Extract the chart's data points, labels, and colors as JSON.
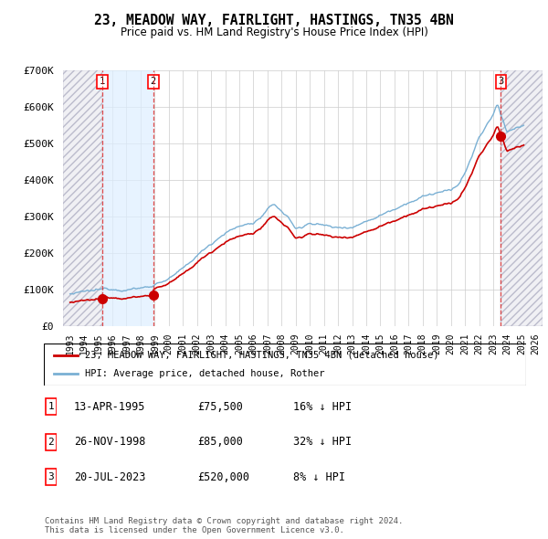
{
  "title": "23, MEADOW WAY, FAIRLIGHT, HASTINGS, TN35 4BN",
  "subtitle": "Price paid vs. HM Land Registry's House Price Index (HPI)",
  "ylim": [
    0,
    700000
  ],
  "yticks": [
    0,
    100000,
    200000,
    300000,
    400000,
    500000,
    600000,
    700000
  ],
  "ytick_labels": [
    "£0",
    "£100K",
    "£200K",
    "£300K",
    "£400K",
    "£500K",
    "£600K",
    "£700K"
  ],
  "sales": [
    {
      "date": 1995.29,
      "price": 75500,
      "label": "1"
    },
    {
      "date": 1998.9,
      "price": 85000,
      "label": "2"
    },
    {
      "date": 2023.55,
      "price": 520000,
      "label": "3"
    }
  ],
  "sale_color": "#cc0000",
  "hpi_color": "#7ab0d4",
  "legend_entries": [
    "23, MEADOW WAY, FAIRLIGHT, HASTINGS, TN35 4BN (detached house)",
    "HPI: Average price, detached house, Rother"
  ],
  "table_rows": [
    {
      "num": "1",
      "date": "13-APR-1995",
      "price": "£75,500",
      "hpi": "16% ↓ HPI"
    },
    {
      "num": "2",
      "date": "26-NOV-1998",
      "price": "£85,000",
      "hpi": "32% ↓ HPI"
    },
    {
      "num": "3",
      "date": "20-JUL-2023",
      "price": "£520,000",
      "hpi": "8% ↓ HPI"
    }
  ],
  "footer": "Contains HM Land Registry data © Crown copyright and database right 2024.\nThis data is licensed under the Open Government Licence v3.0.",
  "xmin": 1992.5,
  "xmax": 2026.5,
  "xticks": [
    1993,
    1994,
    1995,
    1996,
    1997,
    1998,
    1999,
    2000,
    2001,
    2002,
    2003,
    2004,
    2005,
    2006,
    2007,
    2008,
    2009,
    2010,
    2011,
    2012,
    2013,
    2014,
    2015,
    2016,
    2017,
    2018,
    2019,
    2020,
    2021,
    2022,
    2023,
    2024,
    2025,
    2026
  ]
}
